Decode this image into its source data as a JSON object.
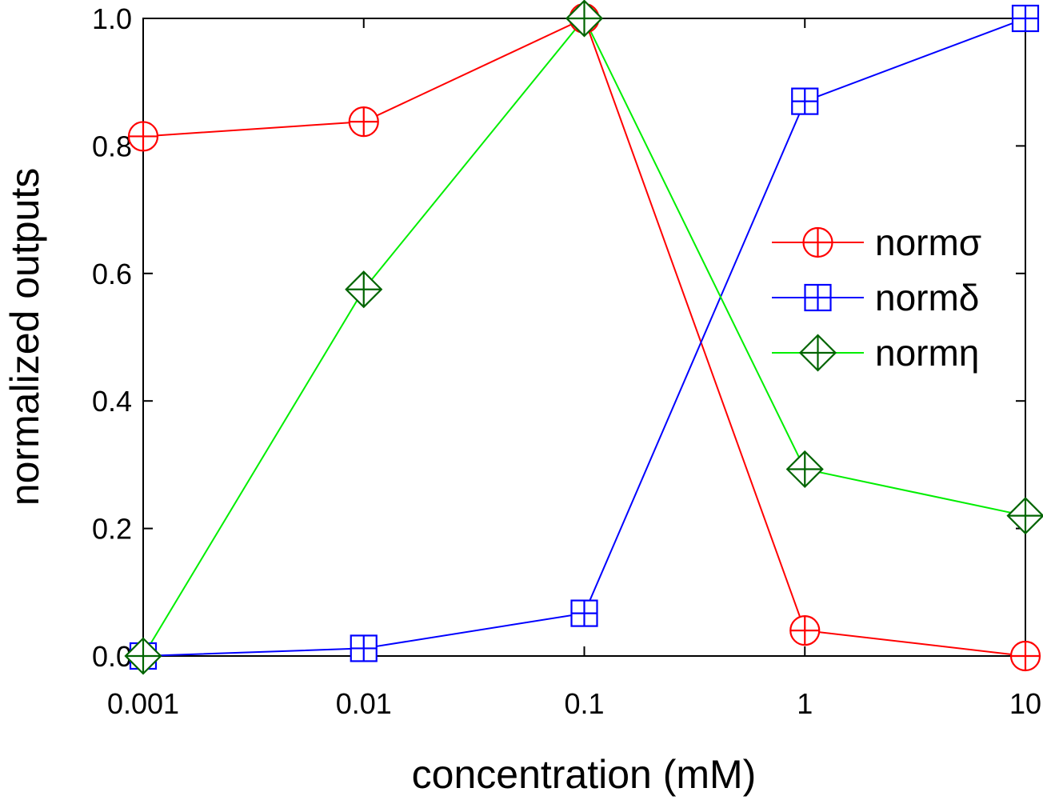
{
  "chart_data": {
    "type": "line",
    "x_scale": "log",
    "x": [
      0.001,
      0.01,
      0.1,
      1,
      10
    ],
    "x_tick_labels": [
      "0.001",
      "0.01",
      "0.1",
      "1",
      "10"
    ],
    "xlabel": "concentration (mM)",
    "ylabel": "normalized outputs",
    "xlim": [
      0.001,
      10
    ],
    "ylim": [
      0,
      1
    ],
    "y_ticks": [
      0.0,
      0.2,
      0.4,
      0.6,
      0.8,
      1.0
    ],
    "y_tick_labels": [
      "0.0",
      "0.2",
      "0.4",
      "0.6",
      "0.8",
      "1.0"
    ],
    "grid": false,
    "legend_position": "right-middle",
    "series": [
      {
        "name": "normσ",
        "values": [
          0.815,
          0.838,
          1.0,
          0.04,
          0.0
        ],
        "line_color": "#ff0000",
        "marker_color": "#ff0000",
        "marker": "circle-plus"
      },
      {
        "name": "normδ",
        "values": [
          0.0,
          0.012,
          0.067,
          0.87,
          1.0
        ],
        "line_color": "#0000ff",
        "marker_color": "#0000ff",
        "marker": "square-plus"
      },
      {
        "name": "normη",
        "values": [
          0.0,
          0.575,
          1.0,
          0.293,
          0.22
        ],
        "line_color": "#00ee00",
        "marker_color": "#006400",
        "marker": "diamond-plus"
      }
    ]
  }
}
